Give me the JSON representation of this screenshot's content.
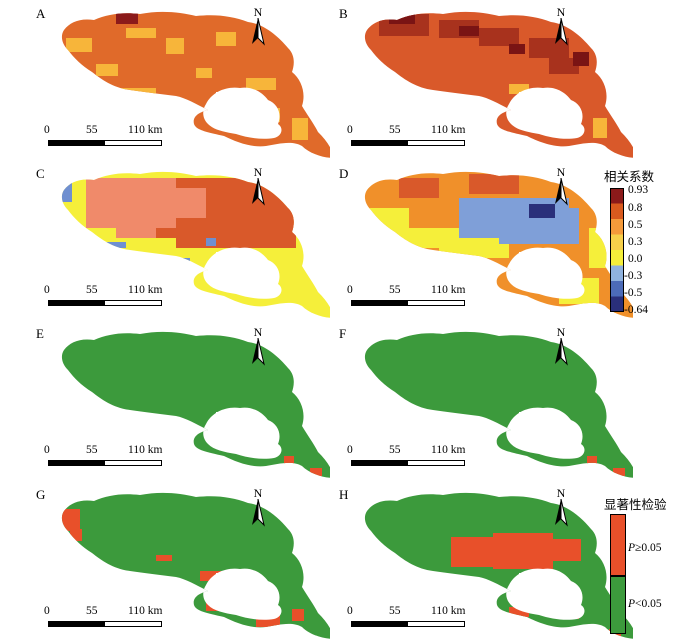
{
  "panels": [
    {
      "label": "A",
      "type": "correlation"
    },
    {
      "label": "B",
      "type": "correlation"
    },
    {
      "label": "C",
      "type": "correlation"
    },
    {
      "label": "D",
      "type": "correlation"
    },
    {
      "label": "E",
      "type": "significance"
    },
    {
      "label": "F",
      "type": "significance"
    },
    {
      "label": "G",
      "type": "significance"
    },
    {
      "label": "H",
      "type": "significance"
    }
  ],
  "north_arrow": {
    "letter": "N"
  },
  "scale_bar": {
    "tick_0": "0",
    "tick_mid": "55",
    "tick_end": "110 km"
  },
  "correlation_legend": {
    "title": "相关系数",
    "labels": [
      "0.93",
      "0.8",
      "0.5",
      "0.3",
      "0.0",
      "-0.3",
      "-0.5",
      "-0.64"
    ],
    "colors": [
      "#8b1a1a",
      "#d95a1e",
      "#f59a3a",
      "#f7d04a",
      "#f5ef3a",
      "#8fb2de",
      "#4c6bb8",
      "#2a2f7a"
    ]
  },
  "significance_legend": {
    "title": "显著性检验",
    "p_symbol": "P",
    "ge_label": "≥0.05",
    "lt_label": "<0.05",
    "colors": {
      "ge": "#e8502a",
      "lt": "#3c9a3c"
    }
  },
  "map_colors": {
    "A": {
      "base": "#e06a2a",
      "patch": "#f7b53a",
      "dark": "#8b1a1a"
    },
    "B": {
      "base": "#d9592a",
      "patch": "#a8321d",
      "dark": "#7a1414"
    },
    "C": {
      "base": "#d9592a",
      "patch": "#f08a6a",
      "yellow": "#f5ef3a",
      "blue": "#6f8fd0"
    },
    "D": {
      "base": "#f0902a",
      "patch": "#f5ef3a",
      "blue": "#7f9fd8",
      "dark": "#2a2f7a"
    },
    "sig_green": "#3c9a3c",
    "sig_red": "#e8502a"
  }
}
